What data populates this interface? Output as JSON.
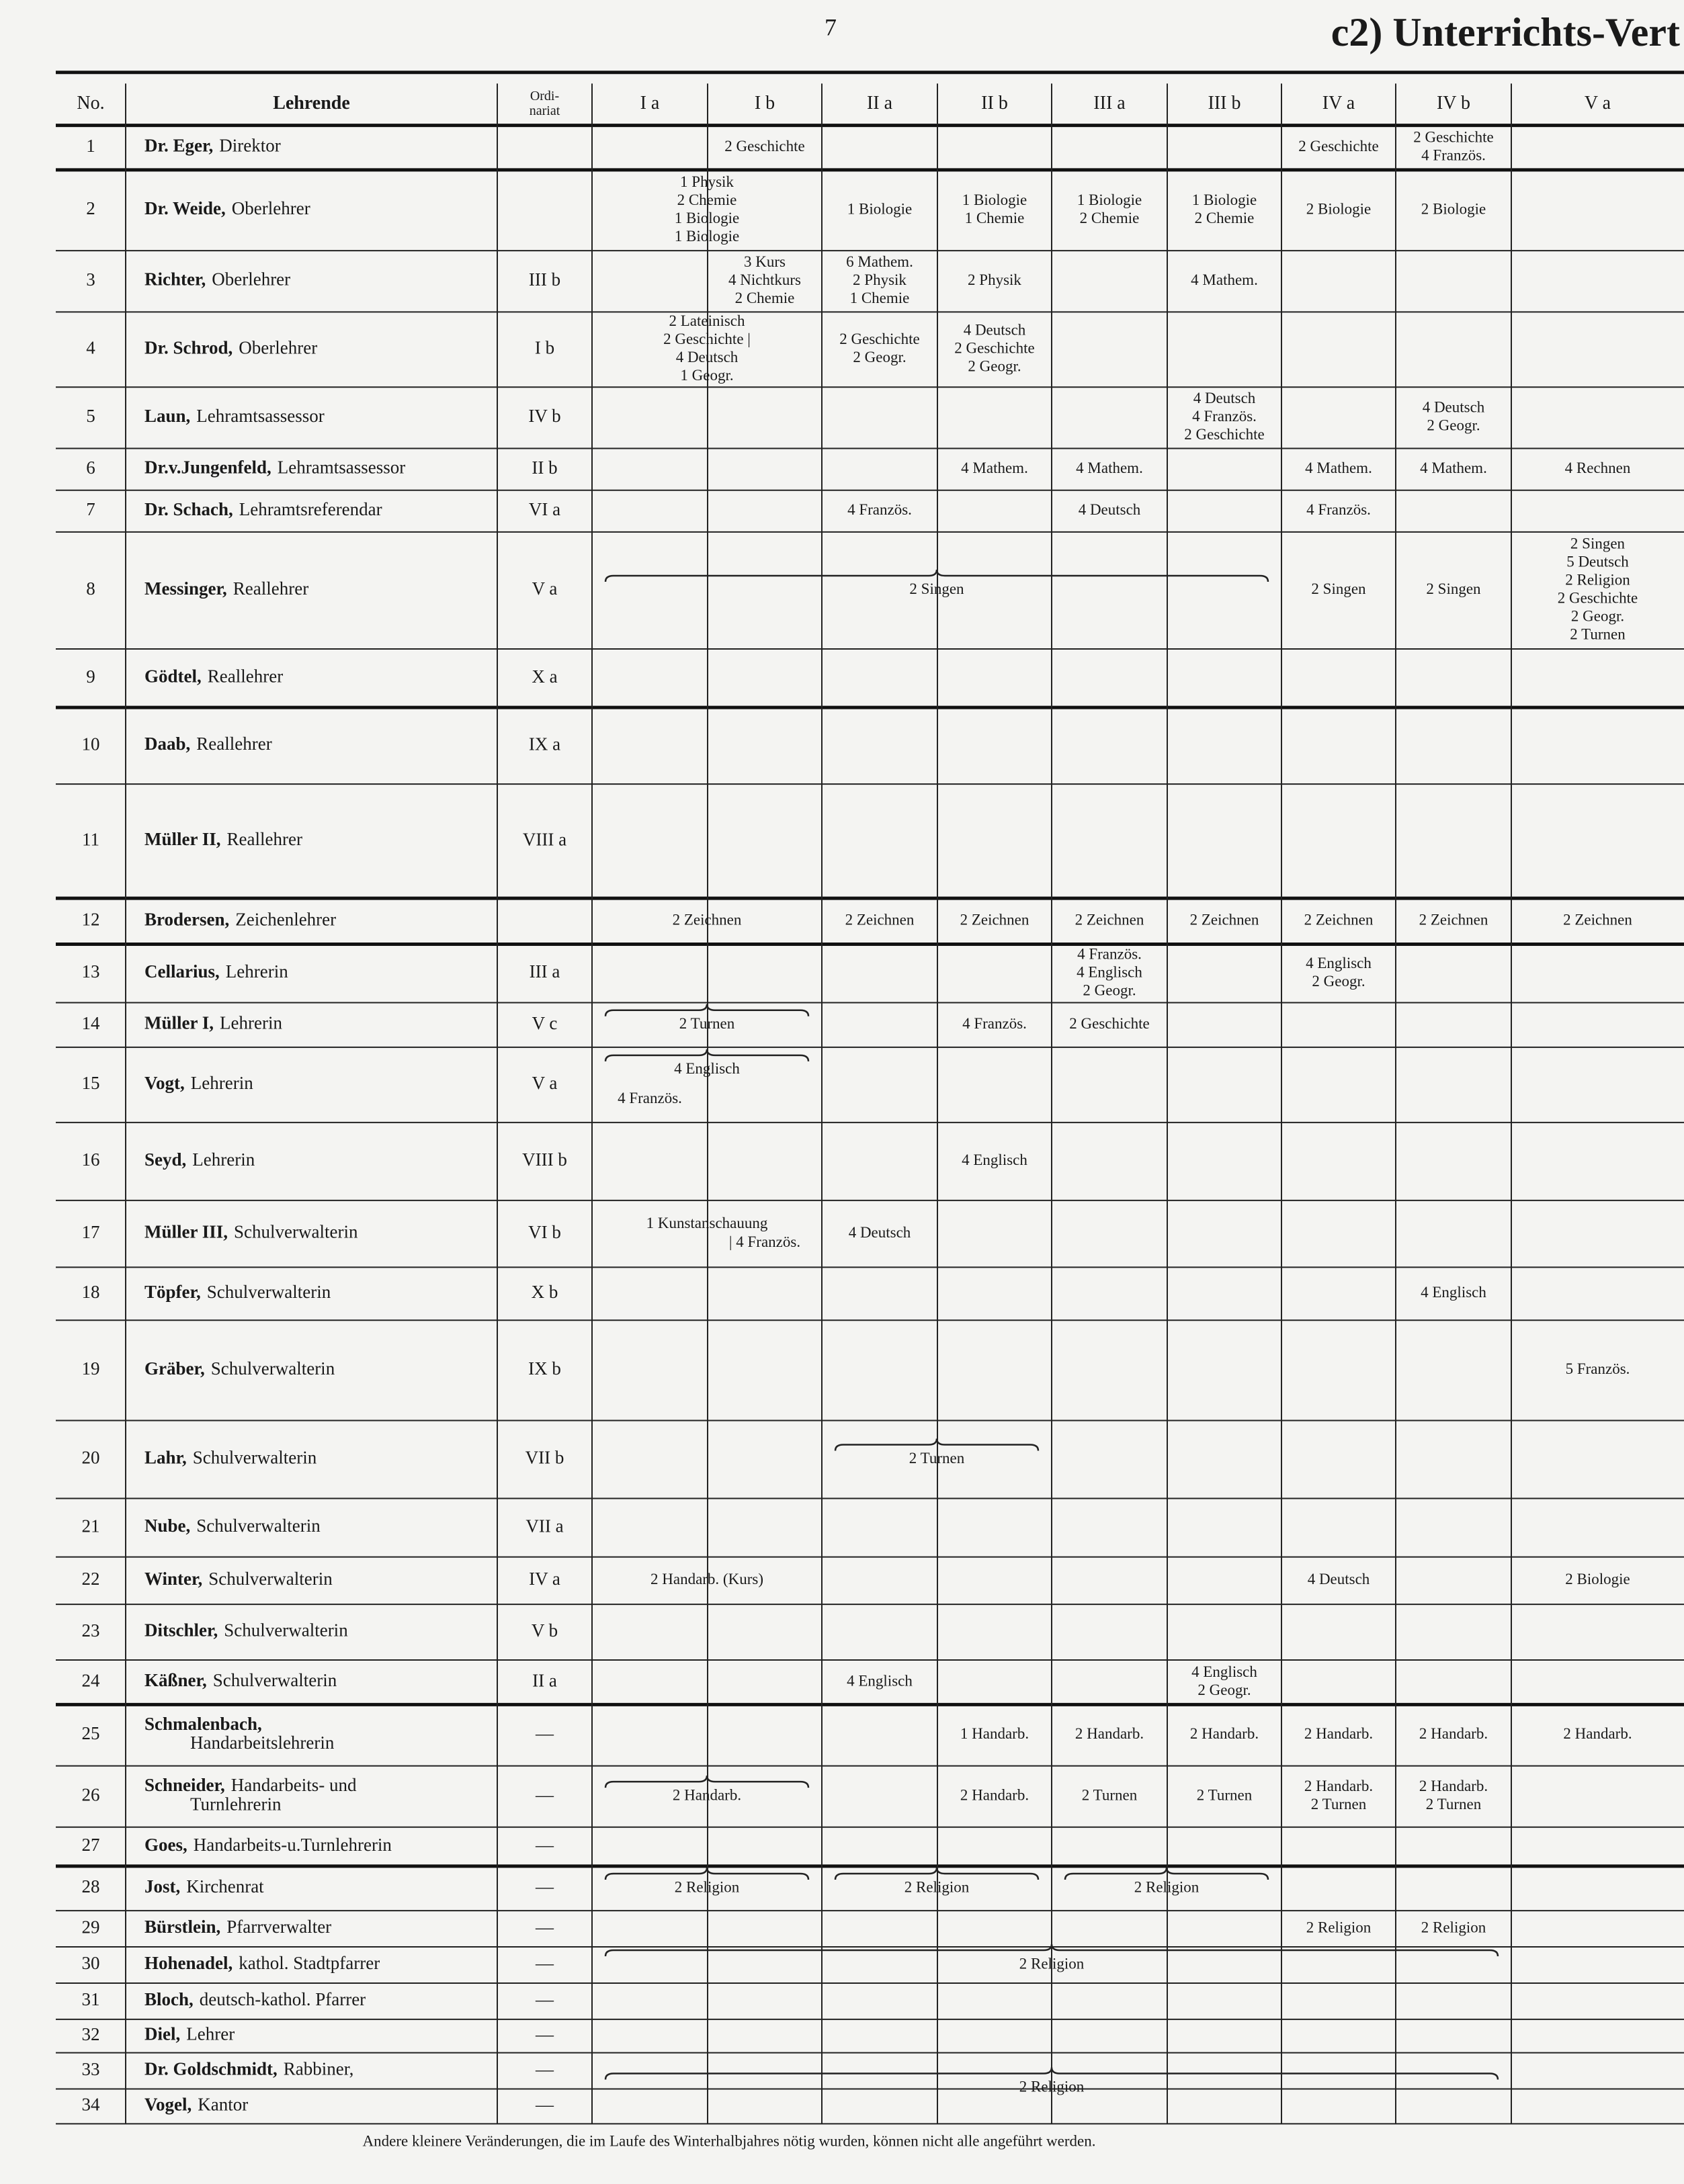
{
  "page_number": "7",
  "title": "c2) Unterrichts-Vert",
  "header": {
    "no": "No.",
    "teachers": "Lehrende",
    "ordinariat": [
      "Ordi-",
      "nariat"
    ],
    "classes": [
      "I a",
      "I b",
      "II a",
      "II b",
      "III a",
      "III b",
      "IV a",
      "IV b",
      "V a"
    ]
  },
  "rows": [
    {
      "no": 1,
      "name": "Dr. Eger,",
      "role": [
        "Direktor"
      ],
      "cells": [
        null,
        [
          "2 Geschichte"
        ],
        null,
        null,
        null,
        null,
        [
          "2 Geschichte"
        ],
        [
          "2 Geschichte",
          "4 Französ."
        ],
        null
      ]
    },
    {
      "no": 2,
      "name": "Dr. Weide,",
      "role": [
        "Oberlehrer"
      ],
      "cells": [
        [
          "1 Physik",
          "2 Chemie",
          "1 Biologie",
          "1 Biologie"
        ],
        null,
        [
          "1 Biologie"
        ],
        [
          "1 Biologie",
          "1 Chemie"
        ],
        [
          "1 Biologie",
          "2 Chemie"
        ],
        [
          "1 Biologie",
          "2 Chemie"
        ],
        [
          "2 Biologie"
        ],
        [
          "2 Biologie"
        ],
        null
      ]
    },
    {
      "no": 3,
      "name": "Richter,",
      "role": [
        "Oberlehrer"
      ],
      "ordinariat": "III b",
      "cells": [
        null,
        [
          "3 Kurs",
          "4 Nichtkurs",
          "2 Chemie"
        ],
        [
          "6 Mathem.",
          "2 Physik",
          "1 Chemie"
        ],
        [
          "2 Physik"
        ],
        null,
        [
          "4 Mathem."
        ],
        null,
        null,
        null
      ]
    },
    {
      "no": 4,
      "name": "Dr. Schrod,",
      "role": [
        "Oberlehrer"
      ],
      "ordinariat": "I b",
      "cells": [
        [
          "2 Lateinisch",
          "2 Geschichte |",
          "4 Deutsch",
          "1 Geogr."
        ],
        null,
        [
          "2 Geschichte",
          "2 Geogr."
        ],
        [
          "4 Deutsch",
          "2 Geschichte",
          "2 Geogr."
        ],
        null,
        null,
        null,
        null,
        null
      ]
    },
    {
      "no": 5,
      "name": "Laun,",
      "role": [
        "Lehramtsassessor"
      ],
      "ordinariat": "IV b",
      "cells": [
        null,
        null,
        null,
        null,
        null,
        [
          "4 Deutsch",
          "4 Französ.",
          "2 Geschichte"
        ],
        null,
        [
          "4 Deutsch",
          "2 Geogr."
        ],
        null
      ]
    },
    {
      "no": 6,
      "name": "Dr.v.Jungenfeld,",
      "role": [
        "Lehramtsassessor"
      ],
      "ordinariat": "II b",
      "cells": [
        null,
        null,
        null,
        [
          "4 Mathem."
        ],
        [
          "4 Mathem."
        ],
        null,
        [
          "4 Mathem."
        ],
        [
          "4 Mathem."
        ],
        [
          "4 Rechnen"
        ]
      ]
    },
    {
      "no": 7,
      "name": "Dr. Schach,",
      "role": [
        "Lehramtsreferendar"
      ],
      "ordinariat": "VI a",
      "cells": [
        null,
        null,
        [
          "4 Französ."
        ],
        null,
        [
          "4 Deutsch"
        ],
        null,
        [
          "4 Französ."
        ],
        null,
        null
      ]
    },
    {
      "no": 8,
      "name": "Messinger,",
      "role": [
        "Reallehrer"
      ],
      "ordinariat": "V a",
      "cells": [
        [
          "2 Singen"
        ],
        null,
        null,
        null,
        null,
        null,
        [
          "2 Singen"
        ],
        [
          "2 Singen"
        ],
        [
          "2 Singen",
          "5 Deutsch",
          "2 Religion",
          "2 Geschichte",
          "2 Geogr.",
          "2 Turnen"
        ]
      ]
    },
    {
      "no": 9,
      "name": "Gödtel,",
      "role": [
        "Reallehrer"
      ],
      "ordinariat": "X a",
      "cells": [
        null,
        null,
        null,
        null,
        null,
        null,
        null,
        null,
        null
      ]
    },
    {
      "no": 10,
      "name": "Daab,",
      "role": [
        "Reallehrer"
      ],
      "ordinariat": "IX a",
      "cells": [
        null,
        null,
        null,
        null,
        null,
        null,
        null,
        null,
        null
      ]
    },
    {
      "no": 11,
      "name": "Müller II,",
      "role": [
        "Reallehrer"
      ],
      "ordinariat": "VIII a",
      "cells": [
        null,
        null,
        null,
        null,
        null,
        null,
        null,
        null,
        null
      ]
    },
    {
      "no": 12,
      "name": "Brodersen,",
      "role": [
        "Zeichenlehrer"
      ],
      "cells": [
        [
          "2 Zeichnen"
        ],
        null,
        [
          "2 Zeichnen"
        ],
        [
          "2 Zeichnen"
        ],
        [
          "2 Zeichnen"
        ],
        [
          "2 Zeichnen"
        ],
        [
          "2 Zeichnen"
        ],
        [
          "2 Zeichnen"
        ],
        [
          "2 Zeichnen"
        ]
      ]
    },
    {
      "no": 13,
      "name": "Cellarius,",
      "role": [
        "Lehrerin"
      ],
      "ordinariat": "III a",
      "cells": [
        null,
        null,
        null,
        null,
        [
          "4 Französ.",
          "4 Englisch",
          "2 Geogr."
        ],
        null,
        [
          "4 Englisch",
          "2 Geogr."
        ],
        null,
        null
      ]
    },
    {
      "no": 14,
      "name": "Müller I,",
      "role": [
        "Lehrerin"
      ],
      "ordinariat": "V c",
      "cells": [
        [
          "2 Turnen"
        ],
        null,
        null,
        [
          "4 Französ."
        ],
        [
          "2 Geschichte"
        ],
        null,
        null,
        null,
        null
      ]
    },
    {
      "no": 15,
      "name": "Vogt,",
      "role": [
        "Lehrerin"
      ],
      "ordinariat": "V a",
      "cells": [
        [
          "4 Französ."
        ],
        [
          "4 Englisch"
        ],
        null,
        null,
        null,
        null,
        null,
        null,
        null
      ]
    },
    {
      "no": 16,
      "name": "Seyd,",
      "role": [
        "Lehrerin"
      ],
      "ordinariat": "VIII b",
      "cells": [
        null,
        null,
        null,
        [
          "4 Englisch"
        ],
        null,
        null,
        null,
        null,
        null
      ]
    },
    {
      "no": 17,
      "name": "Müller III,",
      "role": [
        "Schulverwalterin"
      ],
      "ordinariat": "VI b",
      "cells": [
        [
          "1 Kunstanschauung"
        ],
        [
          "| 4 Französ."
        ],
        [
          "4 Deutsch"
        ],
        null,
        null,
        null,
        null,
        null,
        null
      ]
    },
    {
      "no": 18,
      "name": "Töpfer,",
      "role": [
        "Schulverwalterin"
      ],
      "ordinariat": "X b",
      "cells": [
        null,
        null,
        null,
        null,
        null,
        null,
        null,
        [
          "4 Englisch"
        ],
        null
      ]
    },
    {
      "no": 19,
      "name": "Gräber,",
      "role": [
        "Schulverwalterin"
      ],
      "ordinariat": "IX b",
      "cells": [
        null,
        null,
        null,
        null,
        null,
        null,
        null,
        null,
        [
          "5 Französ."
        ]
      ]
    },
    {
      "no": 20,
      "name": "Lahr,",
      "role": [
        "Schulverwalterin"
      ],
      "ordinariat": "VII b",
      "cells": [
        null,
        null,
        [
          "2 Turnen"
        ],
        null,
        null,
        null,
        null,
        null,
        null
      ]
    },
    {
      "no": 21,
      "name": "Nube,",
      "role": [
        "Schulverwalterin"
      ],
      "ordinariat": "VII a",
      "cells": [
        null,
        null,
        null,
        null,
        null,
        null,
        null,
        null,
        null
      ]
    },
    {
      "no": 22,
      "name": "Winter,",
      "role": [
        "Schulverwalterin"
      ],
      "ordinariat": "IV a",
      "cells": [
        [
          "2 Handarb. (Kurs)"
        ],
        null,
        null,
        null,
        null,
        null,
        [
          "4 Deutsch"
        ],
        null,
        [
          "2 Biologie"
        ]
      ]
    },
    {
      "no": 23,
      "name": "Ditschler,",
      "role": [
        "Schulverwalterin"
      ],
      "ordinariat": "V b",
      "cells": [
        null,
        null,
        null,
        null,
        null,
        null,
        null,
        null,
        null
      ]
    },
    {
      "no": 24,
      "name": "Käßner,",
      "role": [
        "Schulverwalterin"
      ],
      "ordinariat": "II a",
      "cells": [
        null,
        null,
        [
          "4 Englisch"
        ],
        null,
        null,
        [
          "4 Englisch",
          "2 Geogr."
        ],
        null,
        null,
        null
      ]
    },
    {
      "no": 25,
      "name": "Schmalenbach,",
      "role": [
        "Handarbeitslehrerin"
      ],
      "ordinariat": "—",
      "cells": [
        null,
        null,
        null,
        [
          "1 Handarb."
        ],
        [
          "2 Handarb."
        ],
        [
          "2 Handarb."
        ],
        [
          "2 Handarb."
        ],
        [
          "2 Handarb."
        ],
        [
          "2 Handarb."
        ]
      ]
    },
    {
      "no": 26,
      "name": "Schneider,",
      "role": [
        "Handarbeits- und",
        "Turnlehrerin"
      ],
      "ordinariat": "—",
      "cells": [
        [
          "2 Handarb."
        ],
        null,
        null,
        [
          "2 Handarb."
        ],
        [
          "2 Turnen"
        ],
        [
          "2 Turnen"
        ],
        [
          "2 Handarb.",
          "2 Turnen"
        ],
        [
          "2 Handarb.",
          "2 Turnen"
        ],
        null
      ]
    },
    {
      "no": 27,
      "name": "Goes,",
      "role": [
        "Handarbeits-u.Turnlehrerin"
      ],
      "ordinariat": "—",
      "cells": [
        null,
        null,
        null,
        null,
        null,
        null,
        null,
        null,
        null
      ]
    },
    {
      "no": 28,
      "name": "Jost,",
      "role": [
        "Kirchenrat"
      ],
      "ordinariat": "—",
      "cells": [
        [
          "2 Religion"
        ],
        null,
        [
          "2 Religion"
        ],
        null,
        [
          "2 Religion"
        ],
        null,
        null,
        null,
        null
      ]
    },
    {
      "no": 29,
      "name": "Bürstlein,",
      "role": [
        "Pfarrverwalter"
      ],
      "ordinariat": "—",
      "cells": [
        null,
        null,
        null,
        null,
        null,
        null,
        [
          "2 Religion"
        ],
        [
          "2 Religion"
        ],
        null
      ]
    },
    {
      "no": 30,
      "name": "Hohenadel,",
      "role": [
        "kathol. Stadtpfarrer"
      ],
      "ordinariat": "—",
      "cells": [
        [
          "2 Religion"
        ],
        null,
        null,
        null,
        null,
        null,
        null,
        null,
        null
      ]
    },
    {
      "no": 31,
      "name": "Bloch,",
      "role": [
        "deutsch-kathol. Pfarrer"
      ],
      "ordinariat": "—",
      "cells": [
        null,
        null,
        null,
        null,
        null,
        null,
        null,
        null,
        null
      ]
    },
    {
      "no": 32,
      "name": "Diel,",
      "role": [
        "Lehrer"
      ],
      "ordinariat": "—",
      "cells": [
        null,
        null,
        null,
        null,
        null,
        null,
        null,
        null,
        null
      ]
    },
    {
      "no": 33,
      "name": "Dr. Goldschmidt,",
      "role": [
        "Rabbiner,"
      ],
      "ordinariat": "—",
      "cells": [
        [
          "2 Religion"
        ],
        null,
        null,
        null,
        null,
        null,
        null,
        null,
        null
      ]
    },
    {
      "no": 34,
      "name": "Vogel,",
      "role": [
        "Kantor"
      ],
      "ordinariat": "—",
      "cells": [
        null,
        null,
        null,
        null,
        null,
        null,
        null,
        null,
        null
      ]
    }
  ],
  "footnote": "Andere kleinere Veränderungen, die im Laufe des Winterhalbjahres nötig wurden, können nicht alle angeführt werden."
}
